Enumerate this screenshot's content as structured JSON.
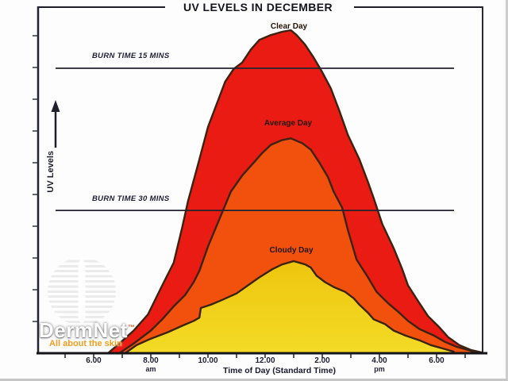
{
  "chart_data": {
    "type": "area",
    "title": "UV LEVELS IN DECEMBER",
    "xlabel": "Time of Day (Standard Time)",
    "ylabel": "UV Levels",
    "x_axis": {
      "ticks": [
        {
          "label": "6.00"
        },
        {
          "label": "8.00",
          "period": "am"
        },
        {
          "label": "10.00"
        },
        {
          "label": "12.00"
        },
        {
          "label": "2.00"
        },
        {
          "label": "4.00",
          "period": "pm"
        },
        {
          "label": "6.00"
        }
      ],
      "tick_hours": [
        6,
        8,
        10,
        12,
        14,
        16,
        18
      ],
      "minor_ticks_hourly": true,
      "range_hours": [
        5,
        19.6
      ]
    },
    "y_axis": {
      "label": "UV Levels",
      "numeric_labels_visible": false,
      "relative_scale": [
        0,
        100
      ],
      "arrow": "up"
    },
    "reference_lines": [
      {
        "label": "BURN TIME 15 MINS",
        "value": 88.2
      },
      {
        "label": "BURN TIME 30 MINS",
        "value": 44.2
      }
    ],
    "outline_color": "#3a2313",
    "axis_color": "#1d1d28",
    "series": [
      {
        "name": "Clear Day",
        "fill": "#e91b12",
        "points": [
          [
            6.5,
            0
          ],
          [
            6.9,
            3
          ],
          [
            7.4,
            7
          ],
          [
            7.9,
            12
          ],
          [
            8.4,
            21
          ],
          [
            8.8,
            28
          ],
          [
            9.1,
            39
          ],
          [
            9.3,
            47
          ],
          [
            9.7,
            60
          ],
          [
            10,
            70
          ],
          [
            10.3,
            77
          ],
          [
            10.6,
            84
          ],
          [
            10.9,
            88
          ],
          [
            11.2,
            90
          ],
          [
            11.5,
            94
          ],
          [
            11.8,
            97
          ],
          [
            12.2,
            98.5
          ],
          [
            12.6,
            99.5
          ],
          [
            12.9,
            100
          ],
          [
            13.1,
            98.5
          ],
          [
            13.4,
            95.5
          ],
          [
            13.7,
            91.5
          ],
          [
            14,
            87
          ],
          [
            14.3,
            82
          ],
          [
            14.6,
            75
          ],
          [
            14.9,
            67.5
          ],
          [
            15.3,
            60
          ],
          [
            15.6,
            53
          ],
          [
            15.8,
            48
          ],
          [
            16.1,
            40
          ],
          [
            16.5,
            32.5
          ],
          [
            16.8,
            26
          ],
          [
            17,
            21
          ],
          [
            17.4,
            15.5
          ],
          [
            17.7,
            11.5
          ],
          [
            18.1,
            8
          ],
          [
            18.4,
            5
          ],
          [
            18.8,
            2.5
          ],
          [
            19.2,
            1
          ],
          [
            19.6,
            0.2
          ]
        ]
      },
      {
        "name": "Average Day",
        "fill": "#f1500d",
        "points": [
          [
            6.9,
            0
          ],
          [
            7.4,
            3
          ],
          [
            8,
            7
          ],
          [
            8.4,
            10.5
          ],
          [
            8.8,
            14.5
          ],
          [
            9.2,
            18
          ],
          [
            9.5,
            22
          ],
          [
            9.7,
            25.5
          ],
          [
            10,
            33
          ],
          [
            10.4,
            41.5
          ],
          [
            10.8,
            50
          ],
          [
            11.2,
            55
          ],
          [
            11.6,
            59
          ],
          [
            11.9,
            62
          ],
          [
            12.2,
            64.5
          ],
          [
            12.6,
            66
          ],
          [
            12.9,
            66.5
          ],
          [
            13.3,
            65
          ],
          [
            13.6,
            63
          ],
          [
            13.9,
            59
          ],
          [
            14.2,
            54.5
          ],
          [
            14.4,
            50
          ],
          [
            14.7,
            45
          ],
          [
            14.9,
            38
          ],
          [
            15.2,
            29
          ],
          [
            15.6,
            23.5
          ],
          [
            15.9,
            19
          ],
          [
            16.3,
            15.5
          ],
          [
            16.7,
            12.5
          ],
          [
            17,
            10
          ],
          [
            17.4,
            7.5
          ],
          [
            17.9,
            5.5
          ],
          [
            18.3,
            3.5
          ],
          [
            18.7,
            2
          ],
          [
            19.1,
            1
          ],
          [
            19.4,
            0.2
          ]
        ]
      },
      {
        "name": "Cloudy Day",
        "fill": "#eec50e",
        "fill_bottom": "#f3db26",
        "points": [
          [
            7.1,
            0
          ],
          [
            7.5,
            2.5
          ],
          [
            8,
            4.5
          ],
          [
            8.6,
            6.5
          ],
          [
            9.1,
            8.5
          ],
          [
            9.5,
            10
          ],
          [
            9.7,
            11
          ],
          [
            9.75,
            14
          ],
          [
            10.1,
            15
          ],
          [
            10.5,
            16.5
          ],
          [
            11,
            18.5
          ],
          [
            11.4,
            21
          ],
          [
            11.8,
            23.5
          ],
          [
            12.25,
            26
          ],
          [
            12.6,
            27.5
          ],
          [
            13,
            28.5
          ],
          [
            13.4,
            27.5
          ],
          [
            13.6,
            26.5
          ],
          [
            13.8,
            24
          ],
          [
            14.1,
            22
          ],
          [
            14.4,
            20.5
          ],
          [
            14.8,
            19
          ],
          [
            15.1,
            17
          ],
          [
            15.3,
            15
          ],
          [
            15.6,
            12.5
          ],
          [
            15.8,
            10.5
          ],
          [
            16.2,
            9
          ],
          [
            16.5,
            7
          ],
          [
            16.9,
            5.5
          ],
          [
            17.4,
            4
          ],
          [
            17.8,
            2.5
          ],
          [
            18.2,
            1.5
          ],
          [
            18.6,
            0.5
          ]
        ]
      }
    ]
  },
  "watermark": {
    "brand": "DermNet",
    "tm": "™",
    "tagline": "All about the skin"
  }
}
